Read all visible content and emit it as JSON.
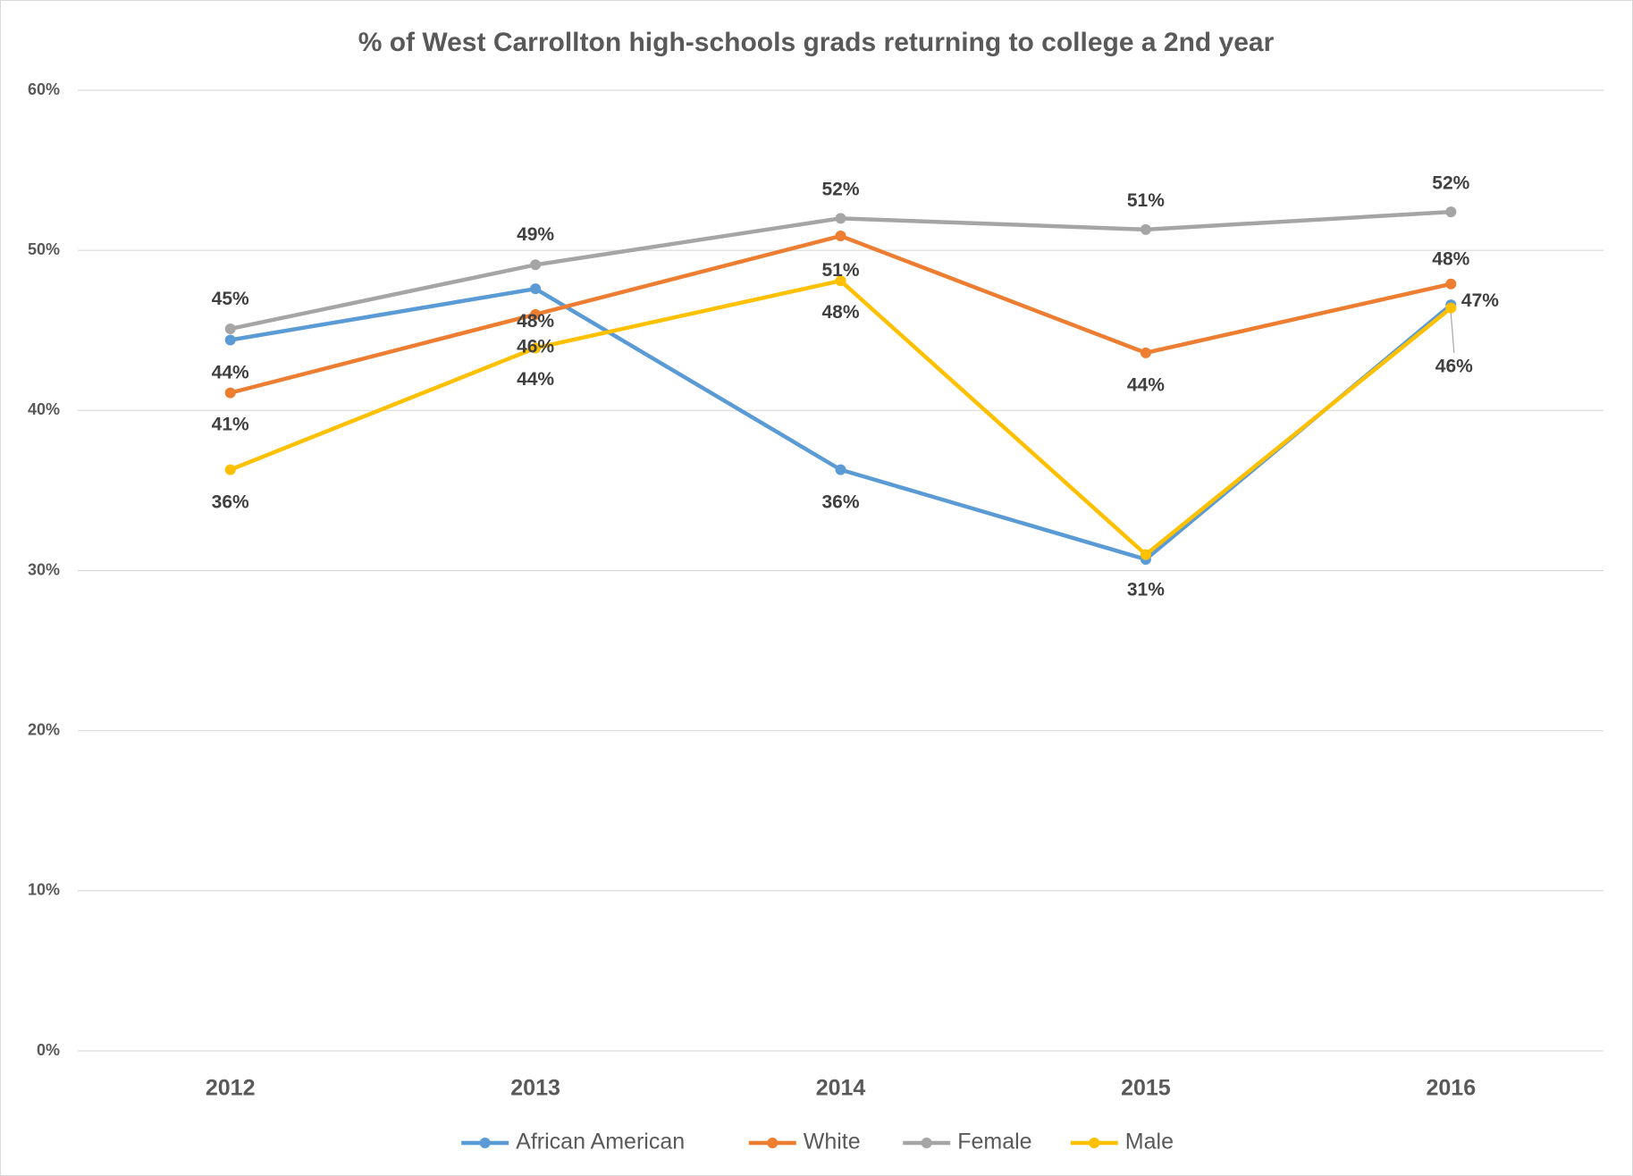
{
  "chart_data": {
    "type": "line",
    "title": "% of West Carrollton high-schools grads returning to college a 2nd year",
    "categories": [
      "2012",
      "2013",
      "2014",
      "2015",
      "2016"
    ],
    "ylim": [
      0,
      60
    ],
    "yticks": [
      {
        "value": 0,
        "label": "0%"
      },
      {
        "value": 10,
        "label": "10%"
      },
      {
        "value": 20,
        "label": "20%"
      },
      {
        "value": 30,
        "label": "30%"
      },
      {
        "value": 40,
        "label": "40%"
      },
      {
        "value": 50,
        "label": "50%"
      },
      {
        "value": 60,
        "label": "60%"
      }
    ],
    "grid": true,
    "legend": "bottom",
    "series": [
      {
        "name": "African American",
        "color": "#5b9bd5",
        "values": [
          44.4,
          47.6,
          36.3,
          30.7,
          46.6
        ],
        "value_labels": [
          "44%",
          "48%",
          "36%",
          "31%",
          "47%"
        ]
      },
      {
        "name": "White",
        "color": "#ed7d31",
        "values": [
          41.1,
          46.0,
          50.9,
          43.6,
          47.9
        ],
        "value_labels": [
          "41%",
          "46%",
          "51%",
          "44%",
          "48%"
        ]
      },
      {
        "name": "Female",
        "color": "#a5a5a5",
        "values": [
          45.1,
          49.1,
          52.0,
          51.3,
          52.4
        ],
        "value_labels": [
          "45%",
          "49%",
          "52%",
          "51%",
          "52%"
        ]
      },
      {
        "name": "Male",
        "color": "#ffc000",
        "values": [
          36.3,
          43.9,
          48.1,
          31.0,
          46.4
        ],
        "value_labels": [
          "36%",
          "44%",
          "48%",
          null,
          "46%"
        ]
      }
    ]
  }
}
